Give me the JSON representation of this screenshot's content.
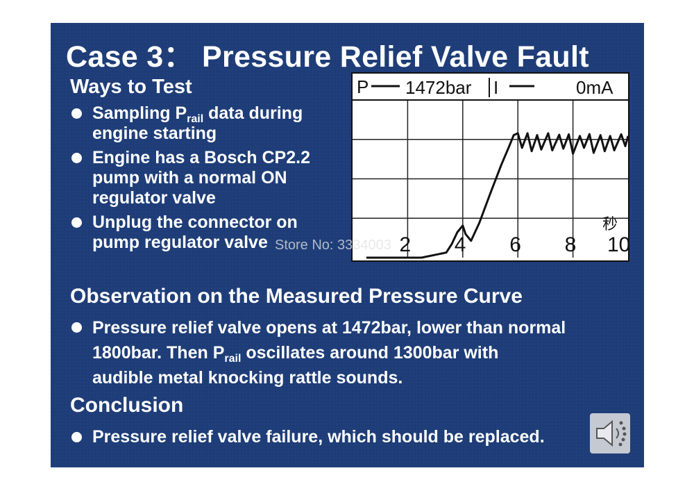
{
  "slide": {
    "title": "Case 3： Pressure Relief Valve Fault",
    "watermark": "Store No: 3334003"
  },
  "ways": {
    "heading": "Ways to Test",
    "bullets": [
      {
        "pre": "Sampling  P",
        "sub": "rail",
        "post": " data during",
        "line2": "engine starting"
      },
      {
        "line1": "Engine has a Bosch CP2.2",
        "line2": "pump with a normal ON",
        "line3": "regulator valve"
      },
      {
        "line1": "Unplug the connector on",
        "line2": "pump regulator valve"
      }
    ]
  },
  "observation": {
    "heading": "Observation on the Measured Pressure Curve",
    "line1": "Pressure relief valve opens at 1472bar, lower than normal",
    "line2_pre": "1800bar. Then  P",
    "line2_sub": "rail",
    "line2_post": " oscillates around 1300bar with",
    "line3": "audible metal knocking rattle sounds."
  },
  "conclusion": {
    "heading": "Conclusion",
    "bullet": "Pressure relief valve failure, which should be replaced."
  },
  "scope": {
    "header_left": "P",
    "header_value": "1472bar",
    "header_sep": "I",
    "header_right": "0mA",
    "unit": "秒",
    "x_ticks": [
      "2",
      "4",
      "6",
      "8",
      "10"
    ]
  },
  "chart_data": {
    "type": "line",
    "title": "",
    "xlabel": "秒",
    "ylabel": "",
    "x_ticks": [
      2,
      4,
      6,
      8,
      10
    ],
    "xlim": [
      0,
      10
    ],
    "ylim": [
      0,
      1800
    ],
    "grid": true,
    "series": [
      {
        "name": "P",
        "x": [
          0.5,
          2.5,
          3.4,
          3.6,
          3.8,
          4.0,
          4.1,
          4.3,
          4.6,
          5.0,
          5.4,
          5.7,
          5.85,
          6.0,
          6.15,
          6.35,
          6.5,
          6.7,
          6.85,
          7.1,
          7.25,
          7.5,
          7.65,
          7.85,
          8.0,
          8.25,
          8.4,
          8.6,
          8.75,
          9.0,
          9.15,
          9.35,
          9.5,
          9.75,
          9.9,
          10.0
        ],
        "y": [
          0,
          0,
          60,
          160,
          300,
          380,
          280,
          200,
          410,
          760,
          1100,
          1330,
          1450,
          1472,
          1300,
          1472,
          1260,
          1450,
          1280,
          1472,
          1270,
          1455,
          1290,
          1460,
          1230,
          1440,
          1300,
          1462,
          1240,
          1450,
          1260,
          1440,
          1270,
          1460,
          1320,
          1440
        ]
      }
    ]
  },
  "colors": {
    "slide_bg": "#1e3d78",
    "text": "#ffffff",
    "scope_bg": "#ffffff",
    "scope_ink": "#111111"
  },
  "icons": {
    "bullet": "bullet-dot",
    "speaker": "speaker-icon"
  }
}
